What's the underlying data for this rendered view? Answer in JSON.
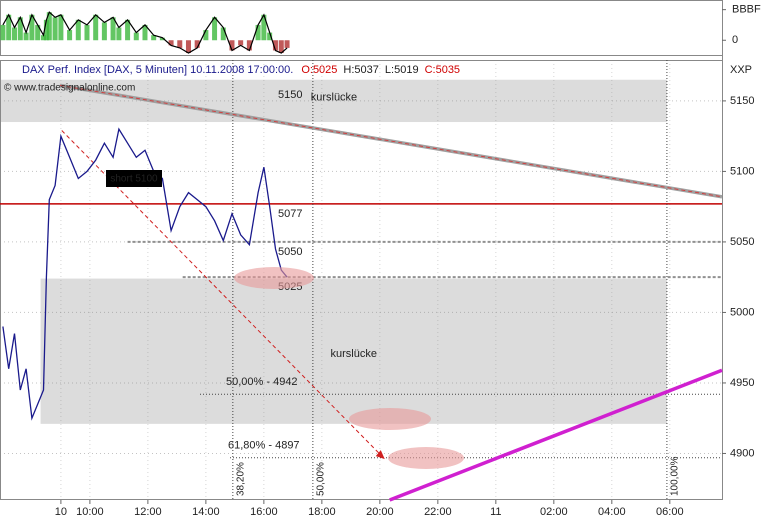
{
  "chart_data": {
    "type": "line",
    "title": "DAX Perf. Index [DAX, 5 Minuten] 10.11.2008 17:00:00.",
    "ohlc": [
      {
        "key": "O:",
        "value": 5025,
        "color": "#d00000"
      },
      {
        "key": "H:",
        "value": 5037,
        "color": "#202020"
      },
      {
        "key": "L:",
        "value": 5019,
        "color": "#202020"
      },
      {
        "key": "C:",
        "value": 5035,
        "color": "#d00000"
      }
    ],
    "copyright": "© www.tradesignalonline.com",
    "y_axis_label": "XXP",
    "x": [
      7.0,
      7.2,
      7.4,
      7.6,
      7.8,
      8.0,
      8.2,
      8.4,
      8.5,
      8.6,
      8.8,
      9.0,
      9.3,
      9.6,
      9.9,
      10.2,
      10.5,
      10.8,
      11.0,
      11.3,
      11.6,
      11.9,
      12.2,
      12.5,
      12.8,
      13.1,
      13.4,
      13.7,
      14.0,
      14.3,
      14.6,
      14.9,
      15.2,
      15.5,
      15.8,
      16.0,
      16.2,
      16.4,
      16.6,
      16.8
    ],
    "series": [
      {
        "name": "DAX",
        "color": "#1a1a8c",
        "values": [
          4990,
          4960,
          4985,
          4945,
          4960,
          4925,
          4935,
          4945,
          5025,
          5080,
          5090,
          5125,
          5110,
          5095,
          5100,
          5108,
          5120,
          5110,
          5130,
          5120,
          5110,
          5115,
          5100,
          5095,
          5058,
          5075,
          5085,
          5080,
          5075,
          5065,
          5051,
          5070,
          5055,
          5048,
          5085,
          5103,
          5075,
          5045,
          5030,
          5025
        ]
      }
    ],
    "xlim": [
      6.9,
      31.8
    ],
    "xticks": [
      {
        "value": 9,
        "label": "10"
      },
      {
        "value": 10,
        "label": "10:00"
      },
      {
        "value": 12,
        "label": "12:00"
      },
      {
        "value": 14,
        "label": "14:00"
      },
      {
        "value": 16,
        "label": "16:00"
      },
      {
        "value": 18,
        "label": "18:00"
      },
      {
        "value": 20,
        "label": "20:00"
      },
      {
        "value": 22,
        "label": "22:00"
      },
      {
        "value": 24,
        "label": "11"
      },
      {
        "value": 26,
        "label": "02:00"
      },
      {
        "value": 28,
        "label": "04:00"
      },
      {
        "value": 30,
        "label": "06:00"
      }
    ],
    "ylim": [
      4867,
      5179
    ],
    "yticks": [
      4900,
      4950,
      5000,
      5050,
      5100,
      5150
    ],
    "indicator": {
      "values": [
        0.6,
        1.0,
        0.5,
        0.9,
        0.3,
        1.0,
        0.6,
        0.2,
        0.8,
        1.1,
        0.9,
        1.0,
        0.4,
        0.8,
        0.6,
        1.0,
        0.7,
        0.9,
        0.5,
        0.8,
        0.3,
        0.6,
        0.2,
        0.1,
        -0.2,
        -0.3,
        -0.5,
        -0.3,
        0.4,
        0.9,
        0.5,
        -0.4,
        -0.2,
        -0.4,
        0.6,
        1.0,
        0.3,
        -0.4,
        -0.5,
        -0.3
      ],
      "ylim": [
        -0.5,
        1.5
      ],
      "yticks": [
        {
          "value": 1.2,
          "label": "BBBF"
        },
        0
      ],
      "up_color": "#3cb83c",
      "down_color": "#b03030"
    },
    "zones": [
      {
        "label": "kurslücke",
        "x": [
          6.9,
          29.9
        ],
        "y": [
          5135,
          5165
        ]
      },
      {
        "label": "kurslücke",
        "x": [
          8.3,
          29.9
        ],
        "y": [
          4921,
          5024
        ]
      }
    ],
    "levels": [
      {
        "value": 5077,
        "from": 6.9,
        "color": "#c00000"
      },
      {
        "value": 5050,
        "from": 11.3,
        "color": "#909090"
      },
      {
        "value": 5025,
        "from": 13.2,
        "color": "#909090"
      }
    ],
    "trend_label": 5150,
    "trendlines": [
      {
        "x": [
          8.97,
          31.8
        ],
        "y": [
          5161,
          5082
        ],
        "color": "#a0a0a0"
      },
      {
        "x": [
          20.34,
          31.8
        ],
        "y": [
          4867,
          4959
        ],
        "color": "#d020d0"
      }
    ],
    "arrow": {
      "x": [
        9.03,
        20.17
      ],
      "y": [
        5129,
        4896
      ],
      "color": "#d02020"
    },
    "short_label": "short 5100",
    "fib_levels": [
      {
        "label": "50,00% - 4942",
        "value": 4942
      },
      {
        "label": "61,80% - 4897",
        "value": 4897
      }
    ],
    "fib_times": [
      {
        "label": "38,20%",
        "x": 14.93
      },
      {
        "label": "50,00%",
        "x": 17.69
      },
      {
        "label": "100,00%",
        "x": 29.9
      }
    ]
  }
}
